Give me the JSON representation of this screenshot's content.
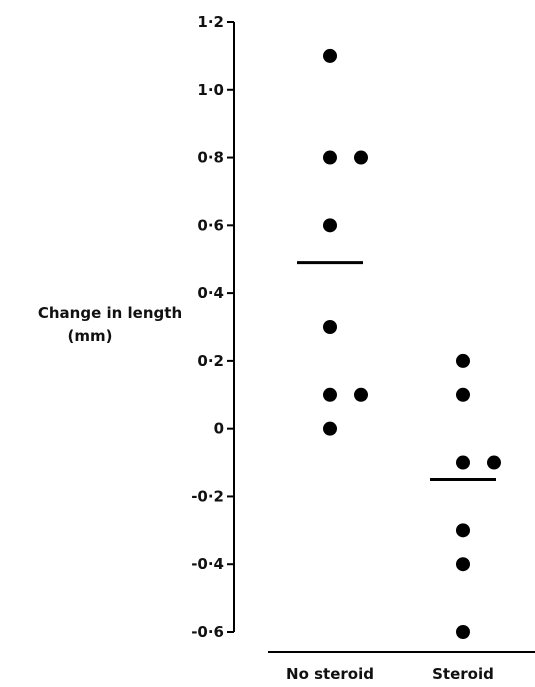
{
  "chart_data": {
    "type": "scatter",
    "title": "",
    "ylabel_lines": [
      "Change in length",
      "(mm)"
    ],
    "xlabel": "",
    "categories": [
      "No steroid",
      "Steroid"
    ],
    "ylim": [
      -0.6,
      1.2
    ],
    "yticks": [
      {
        "value": 1.2,
        "label": "1·2"
      },
      {
        "value": 1.0,
        "label": "1·0"
      },
      {
        "value": 0.8,
        "label": "0·8"
      },
      {
        "value": 0.6,
        "label": "0·6"
      },
      {
        "value": 0.4,
        "label": "0·4"
      },
      {
        "value": 0.2,
        "label": "0·2"
      },
      {
        "value": 0.0,
        "label": "0"
      },
      {
        "value": -0.2,
        "label": "-0·2"
      },
      {
        "value": -0.4,
        "label": "-0·4"
      },
      {
        "value": -0.6,
        "label": "-0·6"
      }
    ],
    "groups": [
      {
        "category": "No steroid",
        "values": [
          1.1,
          0.8,
          0.8,
          0.6,
          0.3,
          0.1,
          0.1,
          0.0
        ],
        "mean": 0.49
      },
      {
        "category": "Steroid",
        "values": [
          0.2,
          0.1,
          -0.1,
          -0.1,
          -0.3,
          -0.4,
          -0.6
        ],
        "mean": -0.15
      }
    ],
    "grid": false,
    "legend": "none",
    "colors": {
      "marker": "#000000",
      "axis": "#000000",
      "text": "#111111"
    }
  }
}
